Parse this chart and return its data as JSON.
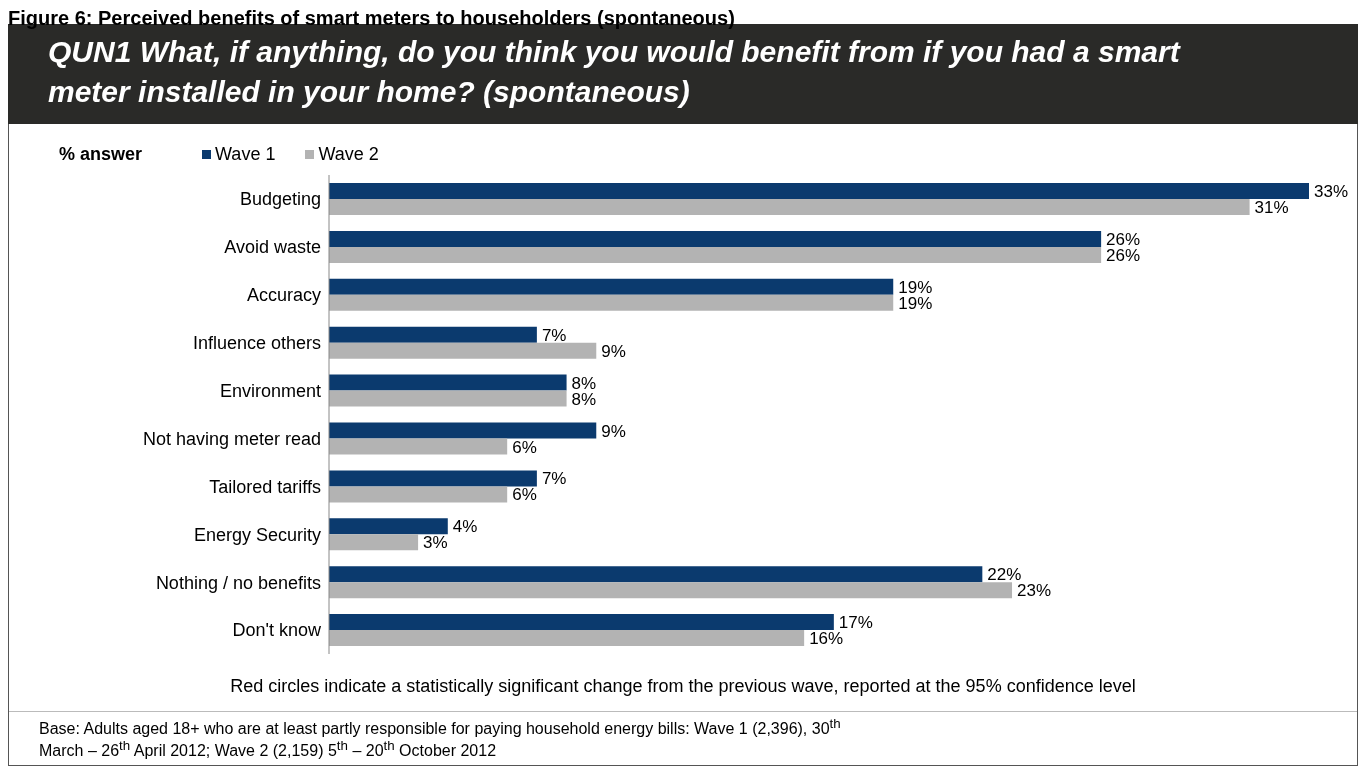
{
  "chart_data": {
    "type": "bar",
    "orientation": "horizontal",
    "title": "QUN1  What, if anything, do you think you would benefit from if you had a smart meter installed in your home? (spontaneous)",
    "legend_title": "% answer",
    "legend": "top",
    "categories": [
      "Budgeting",
      "Avoid waste",
      "Accuracy",
      "Influence others",
      "Environment",
      "Not having meter read",
      "Tailored tariffs",
      "Energy Security",
      "Nothing / no benefits",
      "Don't know"
    ],
    "series": [
      {
        "name": "Wave 1",
        "color": "#0b3a6e",
        "values": [
          33,
          26,
          19,
          7,
          8,
          9,
          7,
          4,
          22,
          17
        ],
        "value_labels": [
          "33%",
          "26%",
          "19%",
          "7%",
          "8%",
          "9%",
          "7%",
          "4%",
          "22%",
          "17%"
        ]
      },
      {
        "name": "Wave 2",
        "color": "#b3b3b3",
        "values": [
          31,
          26,
          19,
          9,
          8,
          6,
          6,
          3,
          23,
          16
        ],
        "value_labels": [
          "31%",
          "26%",
          "19%",
          "9%",
          "8%",
          "6%",
          "6%",
          "3%",
          "23%",
          "16%"
        ]
      }
    ],
    "tick_labels": "y",
    "annotations": [
      "Figure 6: Perceived benefits of smart meters to householders (spontaneous)",
      "Red circles indicate a statistically significant change from the previous wave, reported at the 95% confidence level",
      "Base:  Adults aged 18+ who are at least partly responsible for paying household energy bills: Wave 1 (2,396), 30$^{th}$ March – 26$^{th}$ April 2012; Wave 2 (2,159) 5$^{th}$ – 20$^{th}$ October 2012"
    ]
  }
}
